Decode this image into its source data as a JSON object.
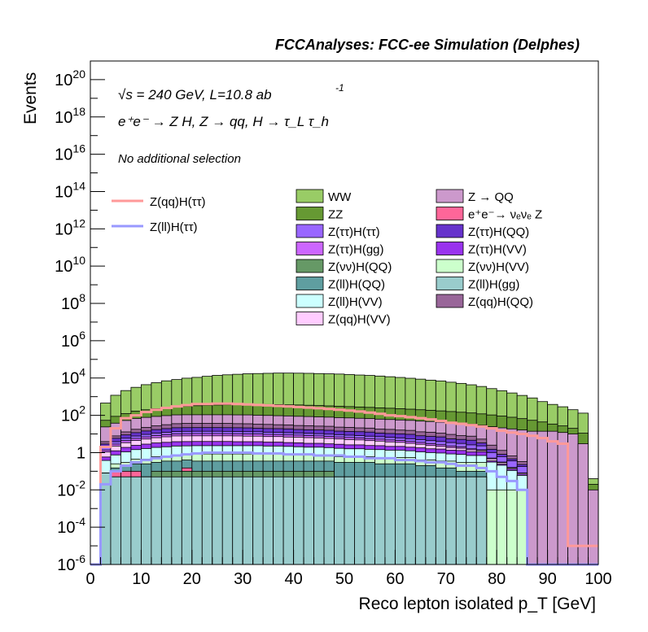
{
  "header": {
    "experiment_label": "FCCAnalyses: FCC-ee Simulation (Delphes)",
    "energy_label": "√s = 240 GeV, L=10.8 ab",
    "lumi_exponent": "-1",
    "process_label": "e⁺e⁻ → Z H, Z → qq, H → τ_L τ_h",
    "selection_label": "No additional selection"
  },
  "chart_data": {
    "type": "histogram",
    "xlabel": "Reco lepton isolated p_T [GeV]",
    "ylabel": "Events",
    "xlim": [
      0,
      100
    ],
    "ylim": [
      1e-06,
      1e+21
    ],
    "yscale": "log",
    "bin_width": 2,
    "x_ticks": [
      "0",
      "10",
      "20",
      "30",
      "40",
      "50",
      "60",
      "70",
      "80",
      "90",
      "100"
    ],
    "y_ticks": [
      {
        "base": "10",
        "exp": "-6",
        "value": 1e-06
      },
      {
        "base": "10",
        "exp": "-4",
        "value": 0.0001
      },
      {
        "base": "10",
        "exp": "-2",
        "value": 0.01
      },
      {
        "base": "1",
        "exp": "",
        "value": 1
      },
      {
        "base": "10",
        "exp": "2",
        "value": 100.0
      },
      {
        "base": "10",
        "exp": "4",
        "value": 10000.0
      },
      {
        "base": "10",
        "exp": "6",
        "value": 1000000.0
      },
      {
        "base": "10",
        "exp": "8",
        "value": 100000000.0
      },
      {
        "base": "10",
        "exp": "10",
        "value": 10000000000.0
      },
      {
        "base": "10",
        "exp": "12",
        "value": 1000000000000.0
      },
      {
        "base": "10",
        "exp": "14",
        "value": 100000000000000.0
      },
      {
        "base": "10",
        "exp": "16",
        "value": 1e+16
      },
      {
        "base": "10",
        "exp": "18",
        "value": 1e+18
      },
      {
        "base": "10",
        "exp": "20",
        "value": 1e+20
      }
    ],
    "stack_order_note": "stacked histogram, first layer at the bottom",
    "stack": [
      {
        "name": "Z(ll)H(gg)",
        "color": "#99cccc",
        "values": [
          0,
          0.08,
          0.05,
          0.05,
          0.05,
          0.05,
          0.05,
          0.05,
          0.05,
          0.05,
          0.05,
          0.05,
          0.05,
          0.05,
          0.05,
          0.05,
          0.05,
          0.05,
          0.05,
          0.05,
          0.05,
          0.05,
          0.05,
          0.05,
          0.05,
          0.05,
          0.05,
          0.05,
          0.05,
          0.05,
          0.05,
          0.05,
          0.05,
          0.05,
          0.05,
          0.05,
          0.05,
          0.05,
          0.05,
          0,
          0,
          0,
          0,
          0,
          0,
          0,
          0,
          0,
          0,
          0
        ]
      },
      {
        "name": "Z(νν)H(QQ)",
        "color": "#669966",
        "values": [
          0,
          0,
          0,
          0,
          0,
          0,
          0.05,
          0.05,
          0.05,
          0.05,
          0.05,
          0.05,
          0.05,
          0.05,
          0.05,
          0.05,
          0.05,
          0.05,
          0.05,
          0.05,
          0.05,
          0.05,
          0.05,
          0.05,
          0,
          0,
          0.0003,
          0,
          0,
          0,
          0,
          0,
          0,
          0,
          0,
          0,
          0,
          0,
          0,
          0,
          0,
          0,
          0,
          0,
          0,
          0,
          0,
          0,
          0,
          0
        ]
      },
      {
        "name": "e⁺e⁻→ νₑνₑ Z",
        "color": "#ff6699",
        "values": [
          0,
          0,
          0.05,
          0.05,
          0.05,
          0,
          0,
          0,
          0,
          0.05,
          0,
          0,
          0,
          0,
          0,
          0,
          0,
          0,
          0,
          0,
          0,
          0,
          0,
          0,
          0,
          0,
          0,
          0,
          0,
          0,
          0,
          0,
          0,
          0,
          0,
          0,
          0,
          0,
          0,
          0,
          0,
          0,
          0,
          0,
          0,
          0,
          0,
          0,
          0,
          0
        ]
      },
      {
        "name": "Z(ll)H(QQ)",
        "color": "#5f9ea0",
        "values": [
          0,
          0,
          0.05,
          0.1,
          0.15,
          0.2,
          0.2,
          0.25,
          0.25,
          0.25,
          0.25,
          0.25,
          0.25,
          0.25,
          0.25,
          0.25,
          0.25,
          0.25,
          0.25,
          0.25,
          0.25,
          0.25,
          0.25,
          0.25,
          0.25,
          0.25,
          0.25,
          0.25,
          0.2,
          0.2,
          0.2,
          0.2,
          0.15,
          0.15,
          0.1,
          0.1,
          0.05,
          0.05,
          0.05,
          0,
          0,
          0,
          0,
          0,
          0,
          0,
          0,
          0,
          0,
          0
        ]
      },
      {
        "name": "Z(νν)H(VV)",
        "color": "#ccffcc",
        "values": [
          0,
          0,
          0.1,
          0.1,
          0.2,
          0.2,
          0.3,
          0.3,
          0.4,
          0.4,
          0.5,
          0.5,
          0.5,
          0.5,
          0.5,
          0.5,
          0.5,
          0.5,
          0.5,
          0.5,
          0.4,
          0.4,
          0.4,
          0.4,
          0.3,
          0.3,
          0.3,
          0.3,
          0.3,
          0.3,
          0.3,
          0.3,
          0.2,
          0.2,
          0.2,
          0.2,
          0.2,
          0.2,
          0.2,
          0.01,
          0.01,
          0.01,
          0.01,
          0,
          0,
          0,
          0,
          0,
          0,
          0
        ]
      },
      {
        "name": "Z(ll)H(VV)",
        "color": "#ccffff",
        "values": [
          0,
          0.3,
          0.5,
          0.8,
          1,
          1.2,
          1.3,
          1.4,
          1.5,
          1.5,
          1.5,
          1.5,
          1.5,
          1.5,
          1.5,
          1.5,
          1.5,
          1.4,
          1.4,
          1.3,
          1.3,
          1.2,
          1.2,
          1.1,
          1.1,
          1,
          1,
          0.9,
          0.9,
          0.8,
          0.8,
          0.7,
          0.7,
          0.6,
          0.6,
          0.5,
          0.5,
          0.4,
          0.4,
          0.3,
          0.2,
          0.1,
          0.05,
          0,
          0,
          0,
          0,
          0,
          0,
          0
        ]
      },
      {
        "name": "Z(ττ)H(VV)",
        "color": "#9933ee",
        "values": [
          0,
          0.2,
          0.5,
          0.8,
          1,
          1.2,
          1.4,
          1.5,
          1.6,
          1.6,
          1.6,
          1.6,
          1.6,
          1.6,
          1.5,
          1.5,
          1.5,
          1.4,
          1.4,
          1.3,
          1.3,
          1.2,
          1.2,
          1.1,
          1.1,
          1,
          1,
          0.9,
          0.9,
          0.8,
          0.8,
          0.7,
          0.7,
          0.6,
          0.6,
          0.5,
          0.5,
          0.4,
          0.4,
          0.05,
          0.03,
          0.02,
          0.01,
          0,
          0,
          0,
          0,
          0,
          0,
          0
        ]
      },
      {
        "name": "Z(qq)H(VV)",
        "color": "#ffccff",
        "values": [
          0,
          0.5,
          1,
          1.5,
          2,
          2.5,
          3,
          3.5,
          4,
          4,
          4,
          4,
          4,
          4,
          4,
          3.8,
          3.8,
          3.6,
          3.6,
          3.4,
          3.4,
          3.2,
          3,
          2.8,
          2.6,
          2.4,
          2.2,
          2,
          1.8,
          1.6,
          1.4,
          1.2,
          1,
          0.8,
          0.6,
          0.5,
          0.4,
          0.3,
          0.2,
          0.1,
          0.05,
          0.02,
          0.01,
          0,
          0,
          0,
          0,
          0,
          0,
          0
        ]
      },
      {
        "name": "Z(ττ)H(gg)",
        "color": "#cc66ff",
        "values": [
          0,
          0.3,
          0.6,
          1,
          1.3,
          1.6,
          1.9,
          2.1,
          2.3,
          2.4,
          2.5,
          2.5,
          2.5,
          2.4,
          2.4,
          2.3,
          2.3,
          2.2,
          2.1,
          2,
          1.9,
          1.8,
          1.7,
          1.6,
          1.5,
          1.4,
          1.3,
          1.2,
          1.1,
          1,
          0.9,
          0.8,
          0.7,
          0.6,
          0.5,
          0.4,
          0.3,
          0.2,
          0.1,
          0.05,
          0.02,
          0.01,
          0,
          0,
          0,
          0,
          0,
          0,
          0,
          0
        ]
      },
      {
        "name": "Z(ττ)H(ττ)",
        "color": "#9966ff",
        "values": [
          0,
          0.5,
          1,
          1.5,
          2,
          2.5,
          3,
          3.2,
          3.4,
          3.5,
          3.5,
          3.5,
          3.5,
          3.4,
          3.3,
          3.2,
          3.1,
          3,
          2.9,
          2.8,
          2.7,
          2.6,
          2.5,
          2.4,
          2.3,
          2.2,
          2.1,
          2,
          1.9,
          1.8,
          1.7,
          1.6,
          1.5,
          1.4,
          1.3,
          1.2,
          1.1,
          1,
          0.9,
          0.5,
          0.3,
          0.2,
          0.1,
          0,
          0,
          0,
          0,
          0,
          0,
          0
        ]
      },
      {
        "name": "Z(ττ)H(QQ)",
        "color": "#6633cc",
        "values": [
          0,
          1,
          2,
          3,
          4,
          5,
          6,
          7,
          8,
          8,
          8,
          8,
          8,
          8,
          8,
          8,
          7,
          7,
          7,
          7,
          6,
          6,
          6,
          6,
          5,
          5,
          5,
          5,
          4,
          4,
          4,
          4,
          3,
          3,
          3,
          2,
          2,
          2,
          1,
          0.5,
          0.2,
          0.1,
          0.05,
          0,
          0,
          0,
          0,
          0,
          0,
          0
        ]
      },
      {
        "name": "Z(qq)H(QQ)",
        "color": "#996699",
        "values": [
          0,
          1,
          2,
          4,
          6,
          8,
          10,
          12,
          14,
          15,
          15,
          15,
          15,
          15,
          14,
          14,
          13,
          13,
          12,
          12,
          11,
          11,
          10,
          10,
          9,
          9,
          8,
          8,
          7,
          7,
          6,
          6,
          5,
          5,
          4,
          4,
          3,
          3,
          2,
          1,
          0.5,
          0.2,
          0.1,
          0,
          0,
          0,
          0,
          0,
          0,
          0
        ]
      },
      {
        "name": "Z → QQ",
        "color": "#cc99cc",
        "values": [
          0,
          20,
          30,
          40,
          50,
          55,
          60,
          65,
          70,
          70,
          70,
          70,
          70,
          70,
          70,
          70,
          68,
          66,
          64,
          62,
          60,
          58,
          56,
          54,
          52,
          50,
          48,
          46,
          44,
          42,
          40,
          38,
          36,
          34,
          32,
          30,
          28,
          26,
          24,
          22,
          20,
          18,
          16,
          14,
          14,
          14,
          12,
          10,
          3,
          0.01
        ]
      },
      {
        "name": "ZZ",
        "color": "#669933",
        "values": [
          0,
          30,
          50,
          70,
          100,
          120,
          140,
          160,
          180,
          200,
          220,
          240,
          250,
          260,
          270,
          280,
          280,
          280,
          280,
          270,
          270,
          260,
          250,
          240,
          230,
          220,
          210,
          200,
          190,
          180,
          170,
          160,
          150,
          140,
          130,
          120,
          110,
          100,
          90,
          80,
          70,
          60,
          50,
          40,
          30,
          20,
          15,
          10,
          8,
          0.01
        ]
      },
      {
        "name": "WW",
        "color": "#99cc66",
        "values": [
          0,
          400,
          1100,
          2000,
          3000,
          4200,
          5400,
          6800,
          8000,
          9500,
          10500,
          12000,
          13500,
          14500,
          15500,
          16500,
          17000,
          17500,
          18000,
          18000,
          17800,
          17500,
          17000,
          16500,
          16000,
          15000,
          14200,
          13500,
          12500,
          11500,
          10500,
          9500,
          8500,
          7500,
          6800,
          5800,
          5000,
          4200,
          3400,
          2600,
          2000,
          1500,
          1100,
          800,
          500,
          350,
          260,
          180,
          120,
          0.02
        ]
      }
    ],
    "overlays": [
      {
        "name": "Z(qq)H(ττ)",
        "color": "#ff9999",
        "values": [
          0,
          2,
          20,
          70,
          100,
          150,
          200,
          250,
          300,
          350,
          400,
          400,
          420,
          420,
          400,
          380,
          360,
          340,
          320,
          300,
          280,
          260,
          240,
          220,
          200,
          180,
          160,
          140,
          120,
          100,
          90,
          80,
          70,
          60,
          50,
          40,
          35,
          30,
          25,
          20,
          15,
          12,
          10,
          8,
          6,
          4,
          3,
          1e-05,
          1e-05,
          1e-05
        ]
      },
      {
        "name": "Z(ll)H(ττ)",
        "color": "#9999ff",
        "values": [
          0,
          0.02,
          0.1,
          0.2,
          0.3,
          0.4,
          0.5,
          0.6,
          0.7,
          0.8,
          0.9,
          1,
          1,
          1,
          1,
          1,
          0.9,
          0.9,
          0.9,
          0.8,
          0.8,
          0.8,
          0.7,
          0.7,
          0.7,
          0.6,
          0.6,
          0.5,
          0.5,
          0.5,
          0.4,
          0.4,
          0.35,
          0.3,
          0.3,
          0.25,
          0.2,
          0.2,
          0.15,
          0.1,
          0.05,
          0.03,
          0.01,
          1e-06,
          1e-06,
          1e-06,
          1e-06,
          1e-06,
          1e-06,
          1e-06
        ]
      }
    ],
    "legend": {
      "placement": "upper middle",
      "overlay_entries": [
        "Z(qq)H(ττ)",
        "Z(ll)H(ττ)"
      ],
      "column1": [
        "WW",
        "ZZ",
        "Z(ττ)H(ττ)",
        "Z(ττ)H(gg)",
        "Z(νν)H(QQ)",
        "Z(ll)H(QQ)",
        "Z(ll)H(VV)",
        "Z(qq)H(VV)"
      ],
      "column2": [
        "Z → QQ",
        "e⁺e⁻→ νₑνₑ Z",
        "Z(ττ)H(QQ)",
        "Z(ττ)H(VV)",
        "Z(νν)H(VV)",
        "Z(ll)H(gg)",
        "Z(qq)H(QQ)"
      ]
    },
    "grid": false
  }
}
